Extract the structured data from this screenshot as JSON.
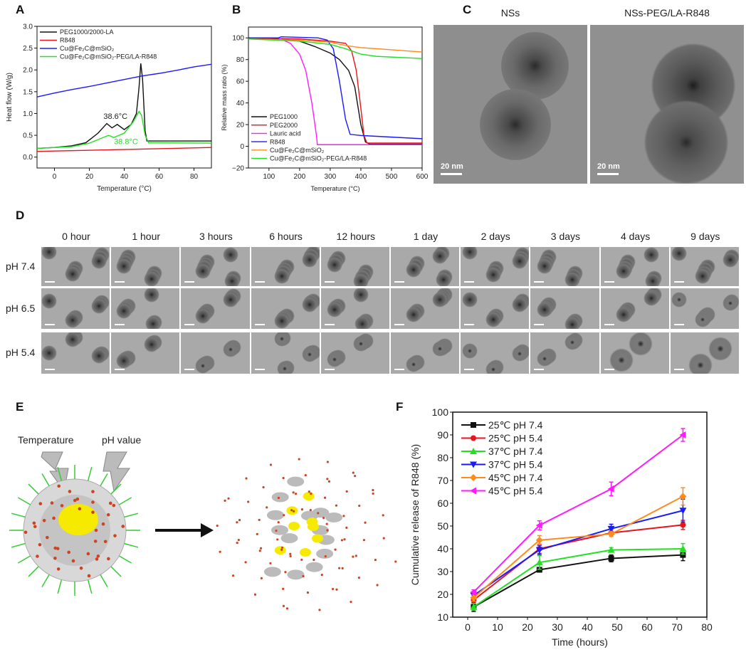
{
  "panels": {
    "A": "A",
    "B": "B",
    "C": "C",
    "D": "D",
    "E": "E",
    "F": "F"
  },
  "panel_c": {
    "left_title": "NSs",
    "right_title": "NSs-PEG/LA-R848",
    "scale_left": "20 nm",
    "scale_right": "20 nm"
  },
  "panel_d": {
    "columns": [
      "0 hour",
      "1 hour",
      "3 hours",
      "6 hours",
      "12 hours",
      "1 day",
      "2 days",
      "3 days",
      "4 days",
      "9 days"
    ],
    "rows": [
      "pH 7.4",
      "pH 6.5",
      "pH 5.4"
    ]
  },
  "panel_e": {
    "temperature_label": "Temperature",
    "ph_label": "pH value"
  },
  "colors": {
    "black": "#111111",
    "red": "#e8141c",
    "blue": "#1a1aff",
    "green": "#22e022",
    "orange": "#ff8c1a",
    "magenta": "#ff1aff"
  },
  "chart_data": [
    {
      "id": "A",
      "type": "line",
      "title": "",
      "xlabel": "Temperature (°C)",
      "ylabel": "Heat flow (W/g)",
      "xlim": [
        -10,
        90
      ],
      "ylim": [
        -0.25,
        3.0
      ],
      "xticks": [
        0,
        20,
        40,
        60,
        80
      ],
      "yticks": [
        0.0,
        0.5,
        1.0,
        1.5,
        2.0,
        2.5,
        3.0
      ],
      "ytick_decimals": 1,
      "legend_position": "top-left",
      "series": [
        {
          "name": "PEG1000/2000-LA",
          "color": "#111111",
          "points": [
            [
              -10,
              0.2
            ],
            [
              0,
              0.22
            ],
            [
              10,
              0.26
            ],
            [
              18,
              0.33
            ],
            [
              25,
              0.55
            ],
            [
              30,
              0.77
            ],
            [
              33,
              0.67
            ],
            [
              36,
              0.75
            ],
            [
              40,
              0.63
            ],
            [
              44,
              0.75
            ],
            [
              47,
              1.0
            ],
            [
              48.5,
              1.6
            ],
            [
              49.5,
              2.15
            ],
            [
              50.5,
              1.8
            ],
            [
              52,
              0.6
            ],
            [
              53,
              0.37
            ],
            [
              60,
              0.37
            ],
            [
              90,
              0.37
            ]
          ]
        },
        {
          "name": "R848",
          "color": "#e8141c",
          "points": [
            [
              -10,
              0.13
            ],
            [
              90,
              0.22
            ]
          ]
        },
        {
          "name": "Cu@Fe₂C@mSiO₂",
          "color": "#1a1aff",
          "points": [
            [
              -10,
              1.38
            ],
            [
              0,
              1.47
            ],
            [
              10,
              1.55
            ],
            [
              20,
              1.62
            ],
            [
              30,
              1.7
            ],
            [
              40,
              1.78
            ],
            [
              50,
              1.86
            ],
            [
              60,
              1.92
            ],
            [
              70,
              1.99
            ],
            [
              80,
              2.07
            ],
            [
              90,
              2.13
            ]
          ]
        },
        {
          "name": "Cu@Fe₂C@mSiO₂-PEG/LA-R848",
          "color": "#22e022",
          "points": [
            [
              -10,
              0.2
            ],
            [
              10,
              0.24
            ],
            [
              20,
              0.32
            ],
            [
              28,
              0.45
            ],
            [
              31,
              0.5
            ],
            [
              34,
              0.45
            ],
            [
              40,
              0.55
            ],
            [
              45,
              0.8
            ],
            [
              48.5,
              1.05
            ],
            [
              50,
              0.95
            ],
            [
              52,
              0.5
            ],
            [
              54,
              0.33
            ],
            [
              90,
              0.32
            ]
          ]
        }
      ],
      "annotations": [
        {
          "text": "38.6°C",
          "x": 35,
          "y": 0.88,
          "color": "#222222"
        },
        {
          "text": "38.8°C",
          "x": 41,
          "y": 0.3,
          "color": "#22e022"
        }
      ]
    },
    {
      "id": "B",
      "type": "line",
      "title": "",
      "xlabel": "Temperature (°C)",
      "ylabel": "Relative mass ratio (%)",
      "xlim": [
        33,
        600
      ],
      "ylim": [
        -20,
        110
      ],
      "xticks": [
        100,
        200,
        300,
        400,
        500,
        600
      ],
      "yticks": [
        -20,
        0,
        20,
        40,
        60,
        80,
        100
      ],
      "ytick_decimals": 0,
      "legend_position": "bottom-left",
      "series": [
        {
          "name": "PEG1000",
          "color": "#111111",
          "points": [
            [
              33,
              100
            ],
            [
              150,
              99
            ],
            [
              200,
              97
            ],
            [
              250,
              92
            ],
            [
              300,
              86
            ],
            [
              330,
              80
            ],
            [
              360,
              70
            ],
            [
              380,
              55
            ],
            [
              400,
              20
            ],
            [
              415,
              4
            ],
            [
              430,
              2
            ],
            [
              600,
              2
            ]
          ]
        },
        {
          "name": "PEG2000",
          "color": "#e8141c",
          "points": [
            [
              33,
              100
            ],
            [
              200,
              99
            ],
            [
              300,
              97
            ],
            [
              350,
              95
            ],
            [
              370,
              88
            ],
            [
              385,
              70
            ],
            [
              400,
              35
            ],
            [
              410,
              10
            ],
            [
              420,
              3
            ],
            [
              600,
              3
            ]
          ]
        },
        {
          "name": "Lauric acid",
          "color": "#ff1aff",
          "points": [
            [
              33,
              100
            ],
            [
              130,
              100
            ],
            [
              170,
              95
            ],
            [
              200,
              85
            ],
            [
              220,
              70
            ],
            [
              240,
              40
            ],
            [
              255,
              10
            ],
            [
              258,
              1.5
            ],
            [
              600,
              1.5
            ]
          ]
        },
        {
          "name": "R848",
          "color": "#1a1aff",
          "points": [
            [
              33,
              100
            ],
            [
              130,
              100
            ],
            [
              140,
              101
            ],
            [
              260,
              100
            ],
            [
              290,
              98
            ],
            [
              310,
              90
            ],
            [
              330,
              60
            ],
            [
              350,
              25
            ],
            [
              365,
              11
            ],
            [
              400,
              10
            ],
            [
              600,
              7
            ]
          ]
        },
        {
          "name": "Cu@Fe₂C@mSiO₂",
          "color": "#ff8c1a",
          "points": [
            [
              33,
              99
            ],
            [
              200,
              98
            ],
            [
              300,
              96
            ],
            [
              350,
              93
            ],
            [
              400,
              91
            ],
            [
              500,
              89
            ],
            [
              600,
              87
            ]
          ]
        },
        {
          "name": "Cu@Fe₂C@mSiO₂-PEG/LA-R848",
          "color": "#22e022",
          "points": [
            [
              33,
              99
            ],
            [
              200,
              97
            ],
            [
              300,
              94
            ],
            [
              350,
              90
            ],
            [
              400,
              85
            ],
            [
              450,
              83
            ],
            [
              600,
              81
            ]
          ]
        }
      ]
    },
    {
      "id": "F",
      "type": "line",
      "title": "",
      "xlabel": "Time (hours)",
      "ylabel": "Cumulative release of R848 (%)",
      "xlim": [
        -5,
        80
      ],
      "ylim": [
        10,
        100
      ],
      "xticks": [
        0,
        10,
        20,
        30,
        40,
        50,
        60,
        70,
        80
      ],
      "yticks": [
        10,
        20,
        30,
        40,
        50,
        60,
        70,
        80,
        90,
        100
      ],
      "ytick_decimals": 0,
      "legend_position": "top-left",
      "x": [
        2,
        24,
        48,
        72
      ],
      "series": [
        {
          "name": "25℃ pH 7.4",
          "color": "#111111",
          "marker": "square",
          "values": [
            14.5,
            30.8,
            35.8,
            37.3
          ],
          "errors": [
            2,
            1,
            1.5,
            2.5
          ]
        },
        {
          "name": "25℃ pH 5.4",
          "color": "#e8141c",
          "marker": "circle",
          "values": [
            17.5,
            40,
            47,
            50.5
          ],
          "errors": [
            1.5,
            2,
            1.5,
            2
          ]
        },
        {
          "name": "37℃ pH 7.4",
          "color": "#22e022",
          "marker": "triangle-up",
          "values": [
            14.5,
            34,
            39.5,
            40
          ],
          "errors": [
            1.5,
            3,
            1,
            2.3
          ]
        },
        {
          "name": "37℃ pH 5.4",
          "color": "#1a1aff",
          "marker": "triangle-down",
          "values": [
            19.5,
            39.5,
            48.8,
            56.8
          ],
          "errors": [
            1.5,
            2,
            2,
            5
          ]
        },
        {
          "name": "45℃ pH 7.4",
          "color": "#ff8c1a",
          "marker": "diamond",
          "values": [
            18.5,
            43.8,
            46.5,
            63
          ],
          "errors": [
            1.5,
            2,
            1,
            3.8
          ]
        },
        {
          "name": "45℃ pH 5.4",
          "color": "#ff1aff",
          "marker": "triangle-left",
          "values": [
            21,
            50.3,
            66.3,
            90
          ],
          "errors": [
            1,
            2,
            3,
            2.8
          ]
        }
      ]
    }
  ]
}
